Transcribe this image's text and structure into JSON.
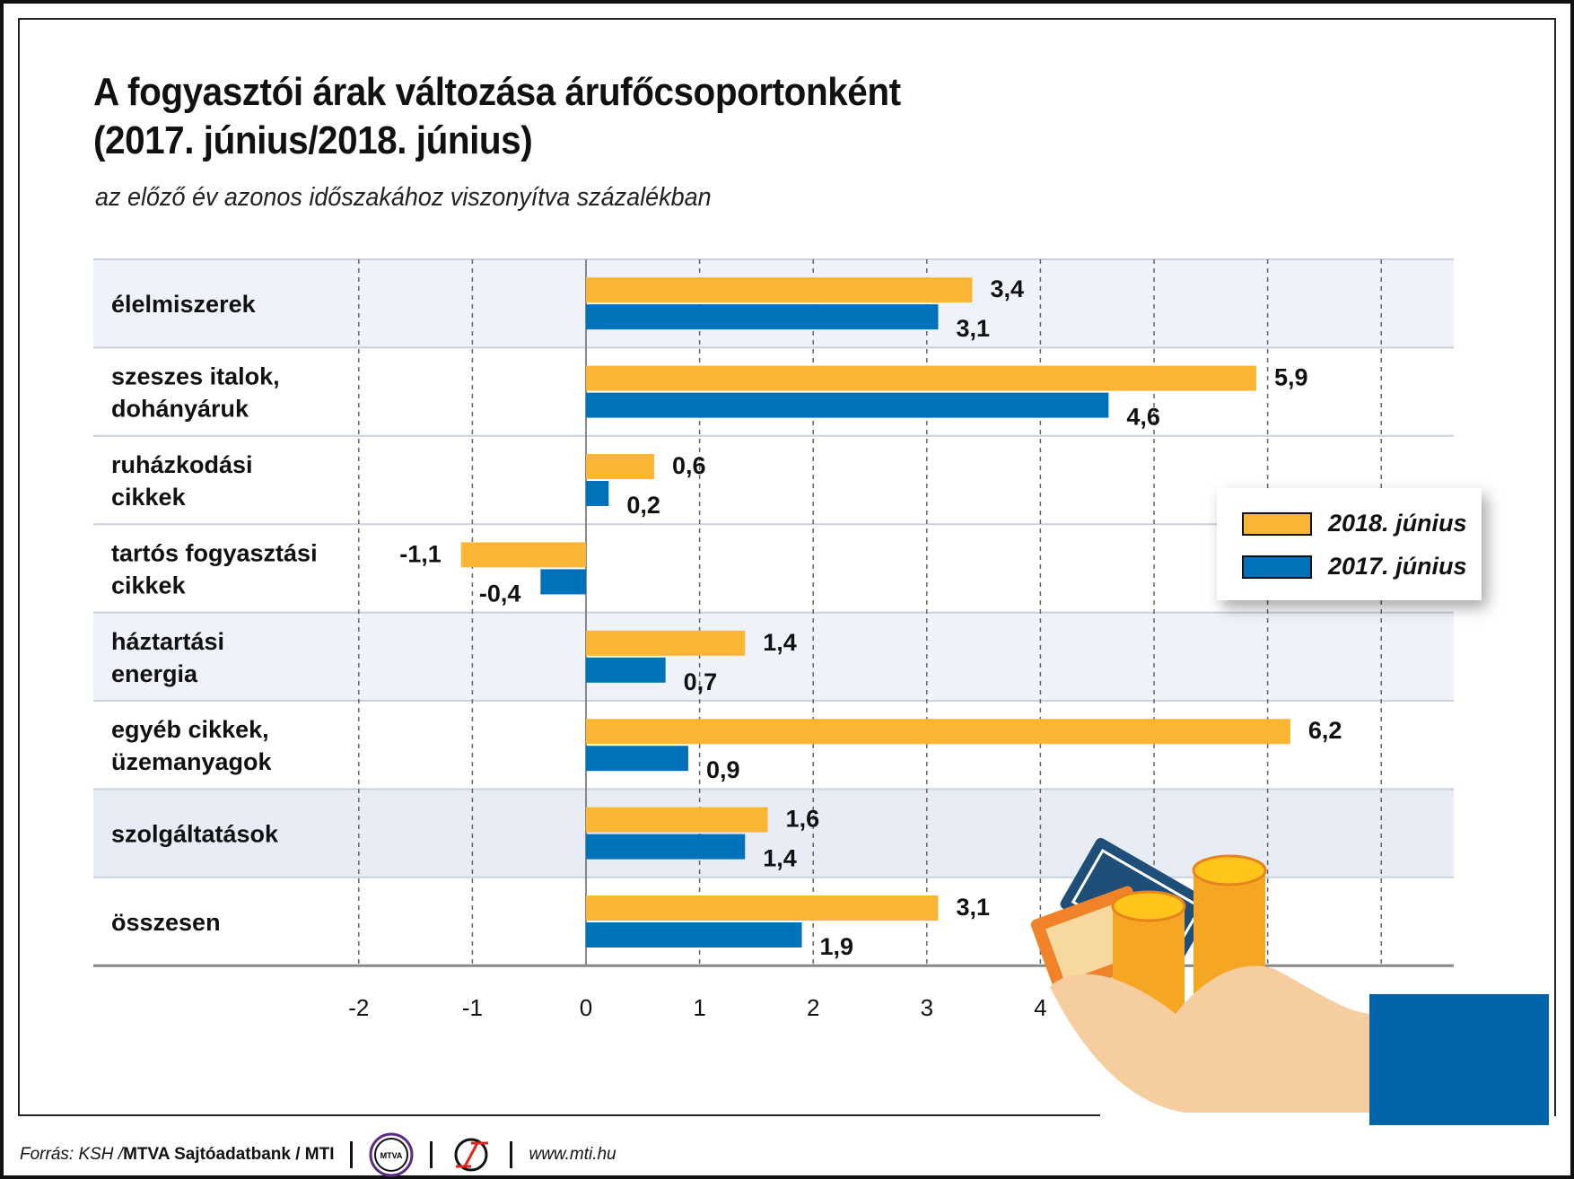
{
  "title_line1": "A fogyasztói árak változása árufőcsoportonként",
  "title_line2": "(2017. június/2018. június)",
  "subtitle": "az előző év azonos időszakához viszonyítva százalékban",
  "legend": [
    {
      "label": "2018. június",
      "color": "#FBB534"
    },
    {
      "label": "2017. június",
      "color": "#0072BC"
    }
  ],
  "footer": {
    "source_prefix": "Forrás: KSH / ",
    "source_bold": "MTVA Sajtóadatbank / MTI",
    "logo1_text": "MTVA",
    "url": "www.mti.hu"
  },
  "chart_data": {
    "type": "bar",
    "orientation": "horizontal",
    "categories": [
      [
        "élelmiszerek"
      ],
      [
        "szeszes italok,",
        "dohányáruk"
      ],
      [
        "ruházkodási",
        "cikkek"
      ],
      [
        "tartós fogyasztási",
        "cikkek"
      ],
      [
        "háztartási",
        "energia"
      ],
      [
        "egyéb cikkek,",
        "üzemanyagok"
      ],
      [
        "szolgáltatások"
      ],
      [
        "összesen"
      ]
    ],
    "series": [
      {
        "name": "2018. június",
        "color": "#FBB534",
        "values": [
          3.4,
          5.9,
          0.6,
          -1.1,
          1.4,
          6.2,
          1.6,
          3.1
        ],
        "labels": [
          "3,4",
          "5,9",
          "0,6",
          "-1,1",
          "1,4",
          "6,2",
          "1,6",
          "3,1"
        ]
      },
      {
        "name": "2017. június",
        "color": "#0072BC",
        "values": [
          3.1,
          4.6,
          0.2,
          -0.4,
          0.7,
          0.9,
          1.4,
          1.9
        ],
        "labels": [
          "3,1",
          "4,6",
          "0,2",
          "-0,4",
          "0,7",
          "0,9",
          "1,4",
          "1,9"
        ]
      }
    ],
    "xticks": [
      "-2",
      "-1",
      "0",
      "1",
      "2",
      "3",
      "4"
    ],
    "xlim": [
      -2,
      7.5
    ],
    "grid": true,
    "legend_position": "right"
  }
}
